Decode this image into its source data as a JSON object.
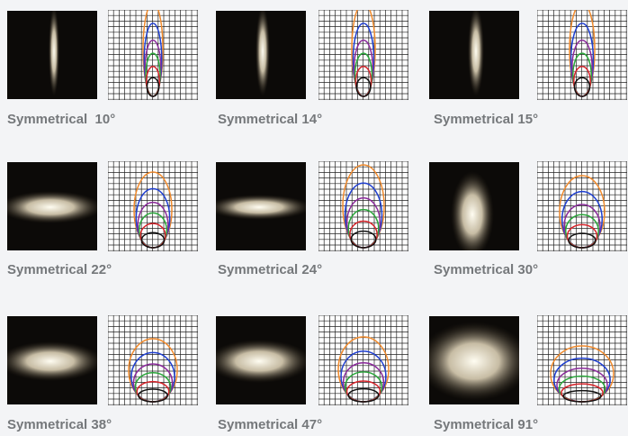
{
  "items": [
    {
      "label": "Symmetrical  10°"
    },
    {
      "label": "Symmetrical 14°"
    },
    {
      "label": "Symmetrical 15°"
    },
    {
      "label": "Symmetrical 22°"
    },
    {
      "label": "Symmetrical 24°"
    },
    {
      "label": "Symmetrical 30°"
    },
    {
      "label": "Symmetrical 38°"
    },
    {
      "label": "Symmetrical 47°"
    },
    {
      "label": "Symmetrical 91°"
    }
  ]
}
